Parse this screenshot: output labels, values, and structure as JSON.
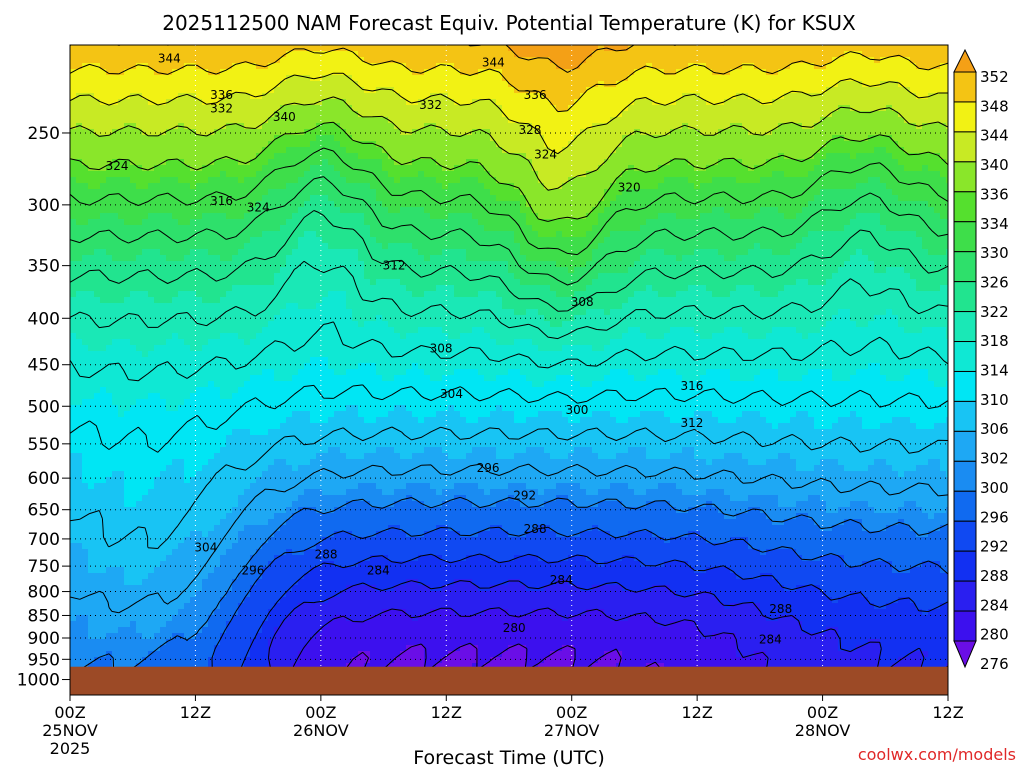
{
  "chart_data": {
    "type": "heatmap",
    "title": "2025112500 NAM Forecast Equiv. Potential Temperature (K) for KSUX",
    "xlabel": "Forecast Time (UTC)",
    "credit": "coolwx.com/models",
    "x_ticks": [
      {
        "hour": 0,
        "label": "00Z",
        "date": "25NOV",
        "year": "2025"
      },
      {
        "hour": 12,
        "label": "12Z"
      },
      {
        "hour": 24,
        "label": "00Z",
        "date": "26NOV"
      },
      {
        "hour": 36,
        "label": "12Z"
      },
      {
        "hour": 48,
        "label": "00Z",
        "date": "27NOV"
      },
      {
        "hour": 60,
        "label": "12Z"
      },
      {
        "hour": 72,
        "label": "00Z",
        "date": "28NOV"
      },
      {
        "hour": 84,
        "label": "12Z"
      }
    ],
    "xlim": [
      0,
      84
    ],
    "y_scale": "log-pressure",
    "y_ticks": [
      250,
      300,
      350,
      400,
      450,
      500,
      550,
      600,
      650,
      700,
      750,
      800,
      850,
      900,
      950,
      1000
    ],
    "ylim": [
      1040,
      200
    ],
    "grid": true,
    "colorbar_levels": [
      276,
      280,
      284,
      288,
      292,
      296,
      300,
      302,
      306,
      310,
      314,
      318,
      322,
      326,
      330,
      334,
      336,
      340,
      344,
      348,
      352
    ],
    "colorbar_colors": [
      "#6a0ee6",
      "#3c10ee",
      "#2a1ff0",
      "#1230f2",
      "#1049f2",
      "#106af0",
      "#1a8cf2",
      "#1ea8f4",
      "#18c4f4",
      "#00e6f4",
      "#0fe8d4",
      "#1ae8b6",
      "#21e48f",
      "#2ee06b",
      "#3ede4a",
      "#55e02e",
      "#8ae62a",
      "#c8ea24",
      "#f2f214",
      "#f4c414",
      "#f4a016"
    ],
    "surface_pressure": 968,
    "contour_labels": [
      {
        "t": 9.5,
        "p": 207,
        "v": "344"
      },
      {
        "t": 40.5,
        "p": 209,
        "v": "344"
      },
      {
        "t": 14.5,
        "p": 227,
        "v": "336"
      },
      {
        "t": 14.5,
        "p": 235,
        "v": "332"
      },
      {
        "t": 20.5,
        "p": 240,
        "v": "340"
      },
      {
        "t": 34.5,
        "p": 233,
        "v": "332"
      },
      {
        "t": 44.5,
        "p": 227,
        "v": "336"
      },
      {
        "t": 44.0,
        "p": 248,
        "v": "328"
      },
      {
        "t": 4.5,
        "p": 272,
        "v": "324"
      },
      {
        "t": 18.0,
        "p": 302,
        "v": "324"
      },
      {
        "t": 45.5,
        "p": 264,
        "v": "324"
      },
      {
        "t": 53.5,
        "p": 287,
        "v": "320"
      },
      {
        "t": 14.5,
        "p": 297,
        "v": "316"
      },
      {
        "t": 31.0,
        "p": 350,
        "v": "312"
      },
      {
        "t": 49.0,
        "p": 384,
        "v": "308"
      },
      {
        "t": 35.5,
        "p": 432,
        "v": "308"
      },
      {
        "t": 36.5,
        "p": 485,
        "v": "304"
      },
      {
        "t": 48.5,
        "p": 505,
        "v": "300"
      },
      {
        "t": 59.5,
        "p": 475,
        "v": "316"
      },
      {
        "t": 59.5,
        "p": 522,
        "v": "312"
      },
      {
        "t": 40.0,
        "p": 585,
        "v": "296"
      },
      {
        "t": 43.5,
        "p": 627,
        "v": "292"
      },
      {
        "t": 44.5,
        "p": 683,
        "v": "288"
      },
      {
        "t": 13.0,
        "p": 715,
        "v": "304"
      },
      {
        "t": 17.5,
        "p": 758,
        "v": "296"
      },
      {
        "t": 24.5,
        "p": 728,
        "v": "288"
      },
      {
        "t": 29.5,
        "p": 758,
        "v": "284"
      },
      {
        "t": 47.0,
        "p": 777,
        "v": "284"
      },
      {
        "t": 68.0,
        "p": 836,
        "v": "288"
      },
      {
        "t": 42.5,
        "p": 878,
        "v": "280"
      },
      {
        "t": 67.0,
        "p": 904,
        "v": "284"
      }
    ]
  }
}
